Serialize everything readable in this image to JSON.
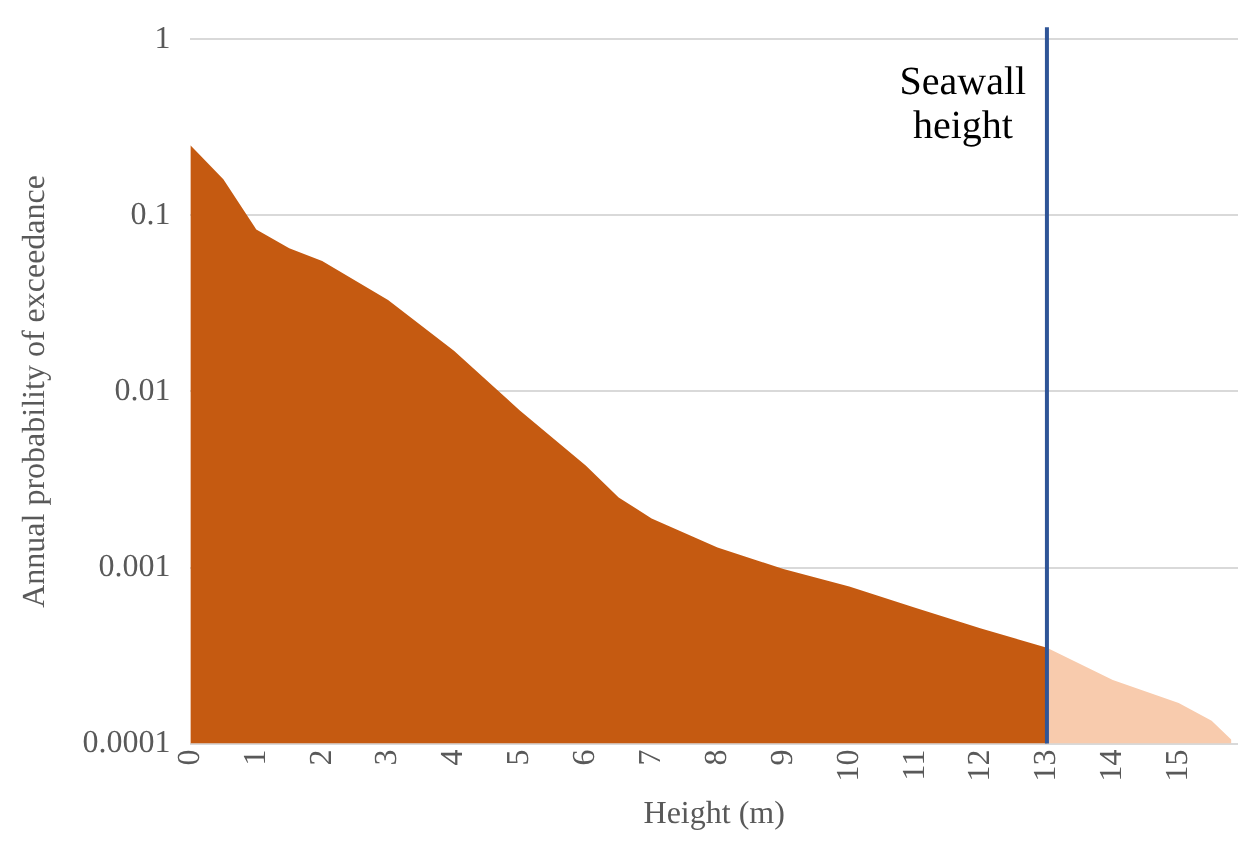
{
  "chart_data": {
    "type": "area",
    "xlabel": "Height (m)",
    "ylabel": "Annual probability of exceedance",
    "log": "y",
    "grid": "y",
    "legend": false,
    "xlim": [
      0,
      15.9
    ],
    "xticks": [
      0,
      1,
      2,
      3,
      4,
      5,
      6,
      7,
      8,
      9,
      10,
      11,
      12,
      13,
      14,
      15
    ],
    "ylim": [
      0.0001,
      1
    ],
    "yticks": [
      0.0001,
      0.001,
      0.01,
      0.1,
      1
    ],
    "series": [
      {
        "color": "#c55a11",
        "x": [
          0,
          0.5,
          1,
          1.5,
          2,
          3,
          4,
          5,
          6,
          6.5,
          7,
          8,
          9,
          10,
          11,
          12,
          13
        ],
        "values": [
          0.25,
          0.16,
          0.083,
          0.065,
          0.055,
          0.033,
          0.017,
          0.0078,
          0.0038,
          0.0025,
          0.0019,
          0.0013,
          0.00098,
          0.00078,
          0.00059,
          0.00045,
          0.00035
        ]
      },
      {
        "color": "#f8cbad",
        "x": [
          13,
          14,
          15,
          15.5,
          15.8
        ],
        "values": [
          0.00035,
          0.00023,
          0.00017,
          0.000135,
          0.000105
        ]
      }
    ],
    "ref_lines": [
      {
        "axis": "x",
        "value": 13,
        "label": "Seawall height",
        "color": "#2f5597"
      }
    ]
  }
}
